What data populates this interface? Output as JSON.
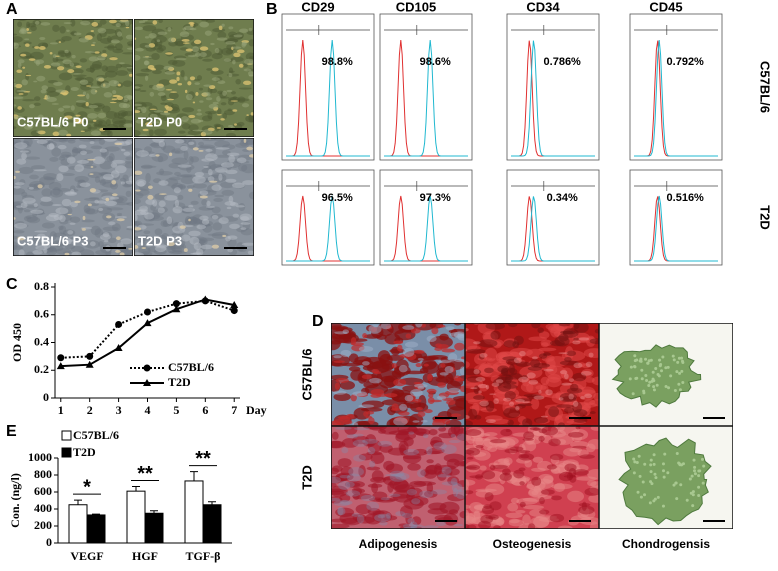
{
  "panel_labels": [
    "A",
    "B",
    "C",
    "D",
    "E"
  ],
  "panel_a": {
    "images": [
      {
        "label": "C57BL/6 P0"
      },
      {
        "label": "T2D P0"
      },
      {
        "label": "C57BL/6 P3"
      },
      {
        "label": "T2D P3"
      }
    ]
  },
  "panel_b": {
    "markers": [
      "CD29",
      "CD105",
      "CD34",
      "CD45"
    ],
    "rows": [
      {
        "label": "C57BL/6",
        "percentages": [
          "98.8%",
          "98.6%",
          "0.786%",
          "0.792%"
        ]
      },
      {
        "label": "T2D",
        "percentages": [
          "96.5%",
          "97.3%",
          "0.34%",
          "0.516%"
        ]
      }
    ]
  },
  "chart_data": [
    {
      "type": "line",
      "xlabel": "Day",
      "ylabel": "OD 450",
      "x": [
        1,
        2,
        3,
        4,
        5,
        6,
        7
      ],
      "xlim": [
        0.8,
        7.2
      ],
      "xticks": [
        1,
        2,
        3,
        4,
        5,
        6,
        7
      ],
      "ylim": [
        0,
        0.8
      ],
      "yticks": [
        0,
        0.2,
        0.4,
        0.6,
        0.8
      ],
      "legend": "lower right",
      "series": [
        {
          "name": "C57BL/6",
          "color": "#000000",
          "line_style": "dotted",
          "marker": "circle",
          "values": [
            0.29,
            0.3,
            0.53,
            0.62,
            0.68,
            0.7,
            0.63
          ]
        },
        {
          "name": "T2D",
          "color": "#000000",
          "line_style": "solid",
          "marker": "triangle",
          "values": [
            0.23,
            0.24,
            0.36,
            0.54,
            0.64,
            0.71,
            0.67
          ]
        }
      ]
    },
    {
      "type": "bar",
      "ylabel": "Con. (ng/l)",
      "categories": [
        "VEGF",
        "HGF",
        "TGF-β"
      ],
      "ylim": [
        0,
        1000
      ],
      "yticks": [
        0,
        200,
        400,
        600,
        800,
        1000
      ],
      "legend": "upper left",
      "series": [
        {
          "name": "C57BL/6",
          "color": "#ffffff",
          "values": [
            450,
            610,
            730
          ],
          "errors": [
            55,
            55,
            110
          ]
        },
        {
          "name": "T2D",
          "color": "#000000",
          "values": [
            330,
            350,
            450
          ],
          "errors": [
            10,
            30,
            35
          ]
        }
      ],
      "annotations": [
        "*",
        "**",
        "**"
      ]
    }
  ],
  "panel_d": {
    "rows": [
      "C57BL/6",
      "T2D"
    ],
    "columns": [
      "Adipogenesis",
      "Osteogenesis",
      "Chondrogensis"
    ]
  }
}
